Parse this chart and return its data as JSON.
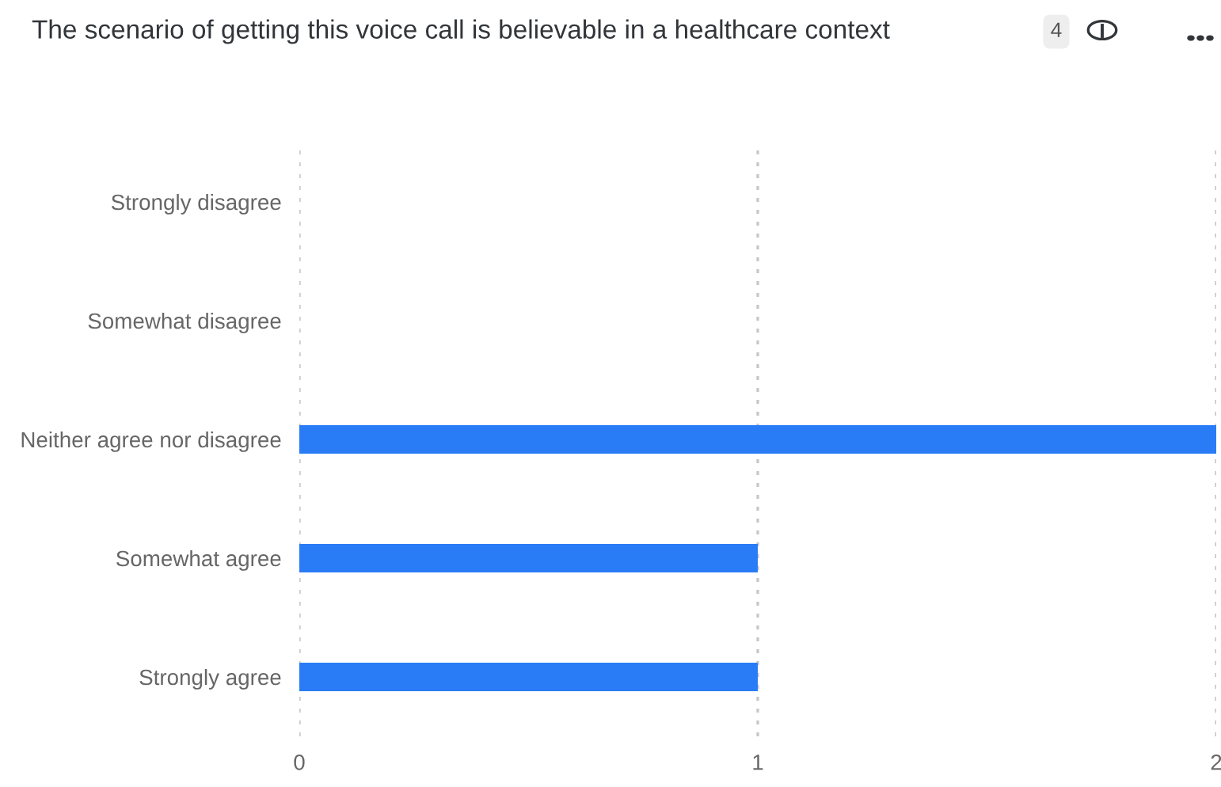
{
  "chart_data": {
    "type": "bar",
    "orientation": "horizontal",
    "title": "The scenario of getting this voice call is believable in a healthcare context",
    "annotations": [
      "4"
    ],
    "categories": [
      "Strongly disagree",
      "Somewhat disagree",
      "Neither agree nor disagree",
      "Somewhat agree",
      "Strongly agree"
    ],
    "values": [
      0,
      0,
      2,
      1,
      1
    ],
    "color": "#2a7cf6",
    "xlim": [
      0,
      2
    ],
    "xticks": [
      0,
      1,
      2
    ],
    "grid": "x"
  }
}
